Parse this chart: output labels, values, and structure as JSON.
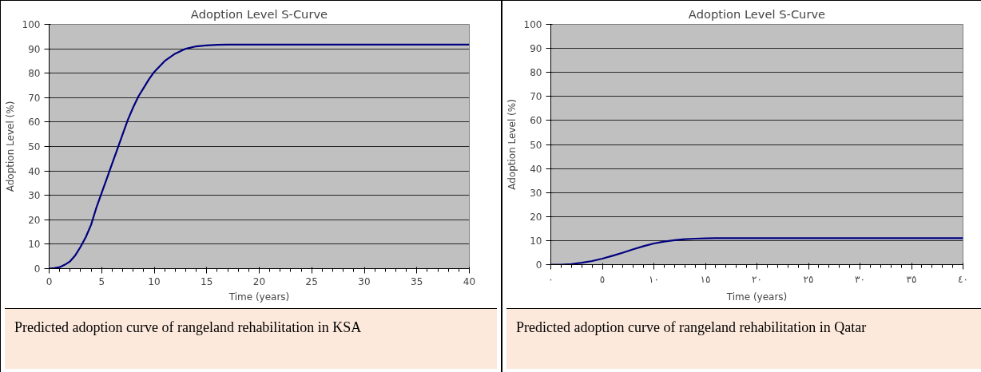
{
  "chart_data": [
    {
      "type": "line",
      "title": "Adoption Level S-Curve",
      "xlabel": "Time (years)",
      "ylabel": "Adoption Level (%)",
      "x": [
        0,
        0.5,
        1,
        1.5,
        2,
        2.5,
        3,
        3.5,
        4,
        4.5,
        5,
        5.5,
        6,
        6.5,
        7,
        7.5,
        8,
        8.5,
        9,
        9.5,
        10,
        11,
        12,
        13,
        14,
        15,
        16,
        17,
        20,
        25,
        30,
        35,
        40
      ],
      "series": [
        {
          "color": "#000080",
          "values": [
            0,
            0.2,
            0.6,
            1.6,
            3,
            5.5,
            9,
            13,
            18,
            25,
            31,
            37,
            43,
            49,
            55,
            61,
            66,
            70.5,
            74,
            77.5,
            80.5,
            85,
            88,
            90,
            91,
            91.4,
            91.6,
            91.7,
            91.7,
            91.7,
            91.7,
            91.7,
            91.7
          ]
        }
      ],
      "xlim": [
        0,
        40
      ],
      "xticks": [
        0,
        5,
        10,
        15,
        20,
        25,
        30,
        35,
        40
      ],
      "ylim": [
        0,
        100
      ],
      "yticks": [
        0,
        10,
        20,
        30,
        40,
        50,
        60,
        70,
        80,
        90,
        100
      ],
      "grid": "y",
      "annotations": [
        "Predicted adoption curve of rangeland rehabilitation in KSA"
      ]
    },
    {
      "type": "line",
      "title": "Adoption Level S-Curve",
      "xlabel": "Time (years)",
      "ylabel": "Adoption Level (%)",
      "x": [
        0,
        1,
        2,
        3,
        4,
        5,
        6,
        7,
        8,
        9,
        10,
        11,
        12,
        13,
        14,
        15,
        16,
        18,
        20,
        25,
        30,
        35,
        40
      ],
      "series": [
        {
          "color": "#000080",
          "values": [
            0,
            0,
            0.2,
            0.8,
            1.5,
            2.5,
            3.7,
            5,
            6.4,
            7.7,
            8.8,
            9.6,
            10.2,
            10.6,
            10.8,
            10.9,
            11,
            11,
            11,
            11,
            11,
            11,
            11
          ]
        }
      ],
      "xlim": [
        0,
        40
      ],
      "xticks": [
        {
          "value": 0,
          "label": "٠"
        },
        {
          "value": 5,
          "label": "٥"
        },
        {
          "value": 10,
          "label": "١٠"
        },
        {
          "value": 15,
          "label": "١٥"
        },
        {
          "value": 20,
          "label": "٢٠"
        },
        {
          "value": 25,
          "label": "٢٥"
        },
        {
          "value": 30,
          "label": "٣٠"
        },
        {
          "value": 35,
          "label": "٣٥"
        },
        {
          "value": 40,
          "label": "٤٠"
        }
      ],
      "ylim": [
        0,
        100
      ],
      "yticks": [
        0,
        10,
        20,
        30,
        40,
        50,
        60,
        70,
        80,
        90,
        100
      ],
      "grid": "y",
      "annotations": [
        "Predicted adoption curve of rangeland rehabilitation in Qatar"
      ]
    }
  ]
}
